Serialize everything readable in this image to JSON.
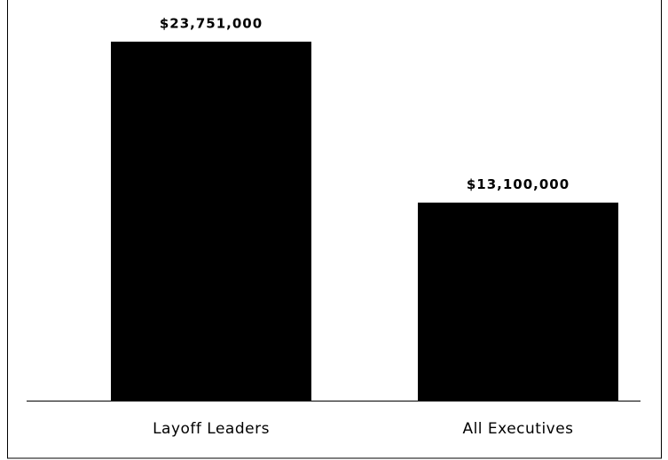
{
  "chart_data": {
    "type": "bar",
    "categories": [
      "Layoff Leaders",
      "All Executives"
    ],
    "values": [
      23751000,
      13100000
    ],
    "value_labels": [
      "$23,751,000",
      "$13,100,000"
    ],
    "color": "#000000"
  }
}
